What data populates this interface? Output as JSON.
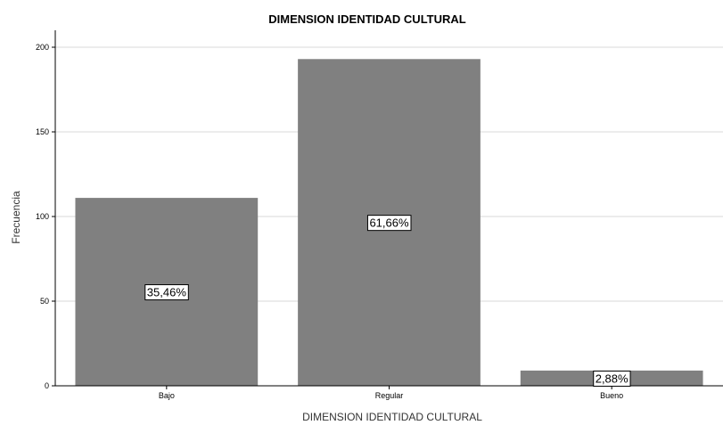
{
  "chart_data": {
    "type": "bar",
    "title": "DIMENSION IDENTIDAD CULTURAL",
    "xlabel": "DIMENSION IDENTIDAD CULTURAL",
    "ylabel": "Frecuencia",
    "categories": [
      "Bajo",
      "Regular",
      "Bueno"
    ],
    "values": [
      111,
      193,
      9
    ],
    "data_labels": [
      "35,46%",
      "61,66%",
      "2,88%"
    ],
    "ylim": [
      0,
      210
    ],
    "yticks": [
      0,
      50,
      100,
      150,
      200
    ],
    "grid": true,
    "bar_color": "#808080",
    "grid_color": "#d9d9d9"
  }
}
